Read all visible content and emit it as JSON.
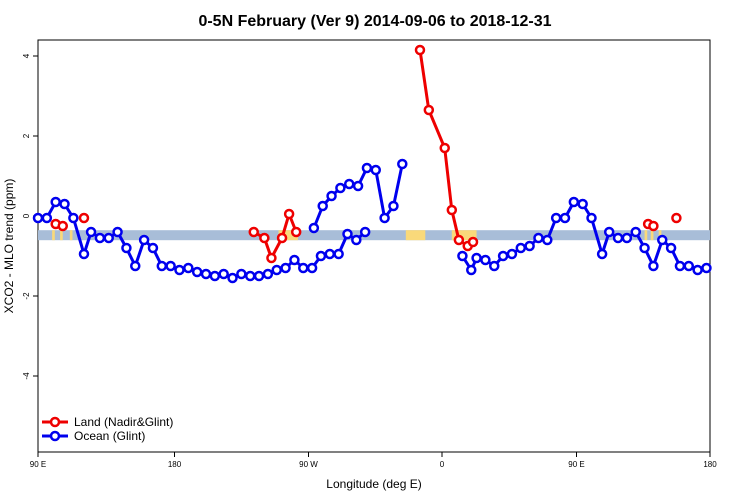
{
  "chart_data": {
    "type": "line",
    "title": "0-5N February (Ver 9)   2014-09-06 to 2018-12-31",
    "xlabel": "Longitude (deg E)",
    "ylabel": "XCO2 - MLO trend (ppm)",
    "x_ticks": [
      {
        "label": "90 E"
      },
      {
        "label": "180"
      },
      {
        "label": "90 W"
      },
      {
        "label": "0"
      },
      {
        "label": "90 E"
      },
      {
        "label": "180"
      }
    ],
    "y_ticks": [
      -4,
      -2,
      0,
      2,
      4
    ],
    "ylim": [
      -5.9,
      4.4
    ],
    "grid": false,
    "legend_position": "bottom-left",
    "colors": {
      "land": "#ee0000",
      "ocean": "#0000ee",
      "band_ocean": "#a8bdd8",
      "band_land": "#f9d97a"
    },
    "series": [
      {
        "name": "Land (Nadir&Glint)",
        "color": "#ee0000",
        "segments": [
          [
            [
              50,
              -0.2
            ],
            [
              54,
              -0.25
            ]
          ],
          [
            [
              66,
              -0.05
            ]
          ],
          [
            [
              162,
              -0.4
            ],
            [
              168,
              -0.55
            ],
            [
              172,
              -1.05
            ],
            [
              178,
              -0.55
            ],
            [
              182,
              0.05
            ],
            [
              186,
              -0.4
            ]
          ],
          [
            [
              256,
              4.15
            ],
            [
              261,
              2.65
            ],
            [
              270,
              1.7
            ],
            [
              274,
              0.15
            ],
            [
              278,
              -0.6
            ],
            [
              283,
              -0.75
            ],
            [
              286,
              -0.65
            ]
          ],
          [
            [
              385,
              -0.2
            ],
            [
              388,
              -0.25
            ]
          ],
          [
            [
              401,
              -0.05
            ]
          ]
        ]
      },
      {
        "name": "Ocean (Glint)",
        "color": "#0000ee",
        "segments": [
          [
            [
              40,
              -0.05
            ],
            [
              45,
              -0.05
            ],
            [
              50,
              0.35
            ],
            [
              55,
              0.3
            ],
            [
              60,
              -0.05
            ],
            [
              66,
              -0.95
            ],
            [
              70,
              -0.4
            ],
            [
              75,
              -0.55
            ],
            [
              80,
              -0.55
            ],
            [
              85,
              -0.4
            ],
            [
              90,
              -0.8
            ],
            [
              95,
              -1.25
            ],
            [
              100,
              -0.6
            ],
            [
              105,
              -0.8
            ],
            [
              110,
              -1.25
            ],
            [
              115,
              -1.25
            ],
            [
              120,
              -1.35
            ],
            [
              125,
              -1.3
            ],
            [
              130,
              -1.4
            ],
            [
              135,
              -1.45
            ],
            [
              140,
              -1.5
            ],
            [
              145,
              -1.45
            ],
            [
              150,
              -1.55
            ],
            [
              155,
              -1.45
            ],
            [
              160,
              -1.5
            ],
            [
              165,
              -1.5
            ],
            [
              170,
              -1.45
            ],
            [
              175,
              -1.35
            ],
            [
              180,
              -1.3
            ],
            [
              185,
              -1.1
            ],
            [
              190,
              -1.3
            ],
            [
              195,
              -1.3
            ],
            [
              200,
              -1.0
            ],
            [
              205,
              -0.95
            ],
            [
              210,
              -0.95
            ],
            [
              215,
              -0.45
            ],
            [
              220,
              -0.6
            ],
            [
              225,
              -0.4
            ]
          ],
          [
            [
              196,
              -0.3
            ],
            [
              201,
              0.25
            ],
            [
              206,
              0.5
            ],
            [
              211,
              0.7
            ],
            [
              216,
              0.8
            ],
            [
              221,
              0.75
            ],
            [
              226,
              1.2
            ],
            [
              231,
              1.15
            ],
            [
              236,
              -0.05
            ],
            [
              241,
              0.25
            ],
            [
              246,
              1.3
            ]
          ],
          [
            [
              280,
              -1.0
            ],
            [
              285,
              -1.35
            ],
            [
              288,
              -1.05
            ],
            [
              293,
              -1.1
            ],
            [
              298,
              -1.25
            ],
            [
              303,
              -1.0
            ],
            [
              308,
              -0.95
            ],
            [
              313,
              -0.8
            ],
            [
              318,
              -0.75
            ],
            [
              323,
              -0.55
            ],
            [
              328,
              -0.6
            ],
            [
              333,
              -0.05
            ],
            [
              338,
              -0.05
            ],
            [
              343,
              0.35
            ],
            [
              348,
              0.3
            ],
            [
              353,
              -0.05
            ],
            [
              359,
              -0.95
            ],
            [
              363,
              -0.4
            ],
            [
              368,
              -0.55
            ],
            [
              373,
              -0.55
            ],
            [
              378,
              -0.4
            ],
            [
              383,
              -0.8
            ],
            [
              388,
              -1.25
            ],
            [
              393,
              -0.6
            ],
            [
              398,
              -0.8
            ],
            [
              403,
              -1.25
            ],
            [
              408,
              -1.25
            ],
            [
              413,
              -1.35
            ],
            [
              418,
              -1.3
            ]
          ]
        ]
      }
    ]
  }
}
